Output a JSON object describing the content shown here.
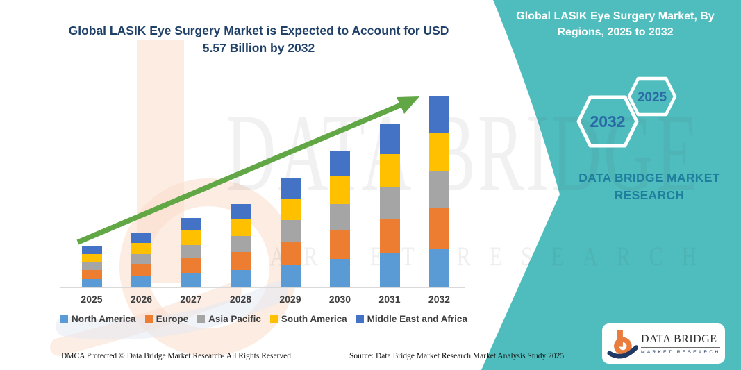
{
  "header": {
    "title_line1": "Global LASIK Eye Surgery Market is Expected to Account for USD",
    "title_line2": "5.57 Billion by 2032"
  },
  "side_panel": {
    "title_line1": "Global LASIK Eye Surgery Market, By",
    "title_line2": "Regions, 2025 to 2032",
    "hexagons": [
      {
        "label": "2032"
      },
      {
        "label": "2025"
      }
    ],
    "brand_text": "DATA BRIDGE MARKET RESEARCH"
  },
  "watermarks": {
    "brand": "DATA BRIDGE",
    "sub": "MARKET RESEARCH"
  },
  "logo_card": {
    "brand": "DATA BRIDGE",
    "sub": "MARKET RESEARCH"
  },
  "footer": {
    "left": "DMCA Protected © Data Bridge Market Research-  All Rights Reserved.",
    "right": "Source: Data Bridge Market Research  Market Analysis Study 2025"
  },
  "colors": {
    "accent_teal": "#4FBDBE",
    "title_blue": "#1F4068",
    "trend_arrow_green": "#61A745",
    "axis_gray": "#D9D9D9"
  },
  "chart_data": {
    "type": "bar",
    "stacked": true,
    "title": "Global LASIK Eye Surgery Market is Expected to Account for USD 5.57 Billion by 2032",
    "value_unit": "USD Billion",
    "categories": [
      "2025",
      "2026",
      "2027",
      "2028",
      "2029",
      "2030",
      "2031",
      "2032"
    ],
    "series": [
      {
        "name": "North America",
        "color": "#5B9BD5",
        "values": [
          0.25,
          0.33,
          0.42,
          0.5,
          0.65,
          0.82,
          0.98,
          1.14
        ]
      },
      {
        "name": "Europe",
        "color": "#ED7D31",
        "values": [
          0.26,
          0.34,
          0.43,
          0.52,
          0.68,
          0.84,
          1.01,
          1.16
        ]
      },
      {
        "name": "Asia Pacific",
        "color": "#A5A5A5",
        "values": [
          0.22,
          0.3,
          0.39,
          0.47,
          0.62,
          0.77,
          0.93,
          1.09
        ]
      },
      {
        "name": "South America",
        "color": "#FFC000",
        "values": [
          0.24,
          0.32,
          0.41,
          0.49,
          0.64,
          0.8,
          0.96,
          1.12
        ]
      },
      {
        "name": "Middle East and Africa",
        "color": "#4472C4",
        "values": [
          0.22,
          0.31,
          0.37,
          0.45,
          0.58,
          0.74,
          0.89,
          1.06
        ]
      }
    ],
    "totals": [
      1.19,
      1.6,
      2.02,
      2.43,
      3.17,
      3.97,
      4.77,
      5.57
    ],
    "xlabel": "",
    "ylabel": "",
    "ylim": [
      0,
      5.57
    ],
    "y_axis_visible": false,
    "grid": false,
    "legend_position": "bottom",
    "annotations": [
      "upward trend arrow"
    ]
  }
}
